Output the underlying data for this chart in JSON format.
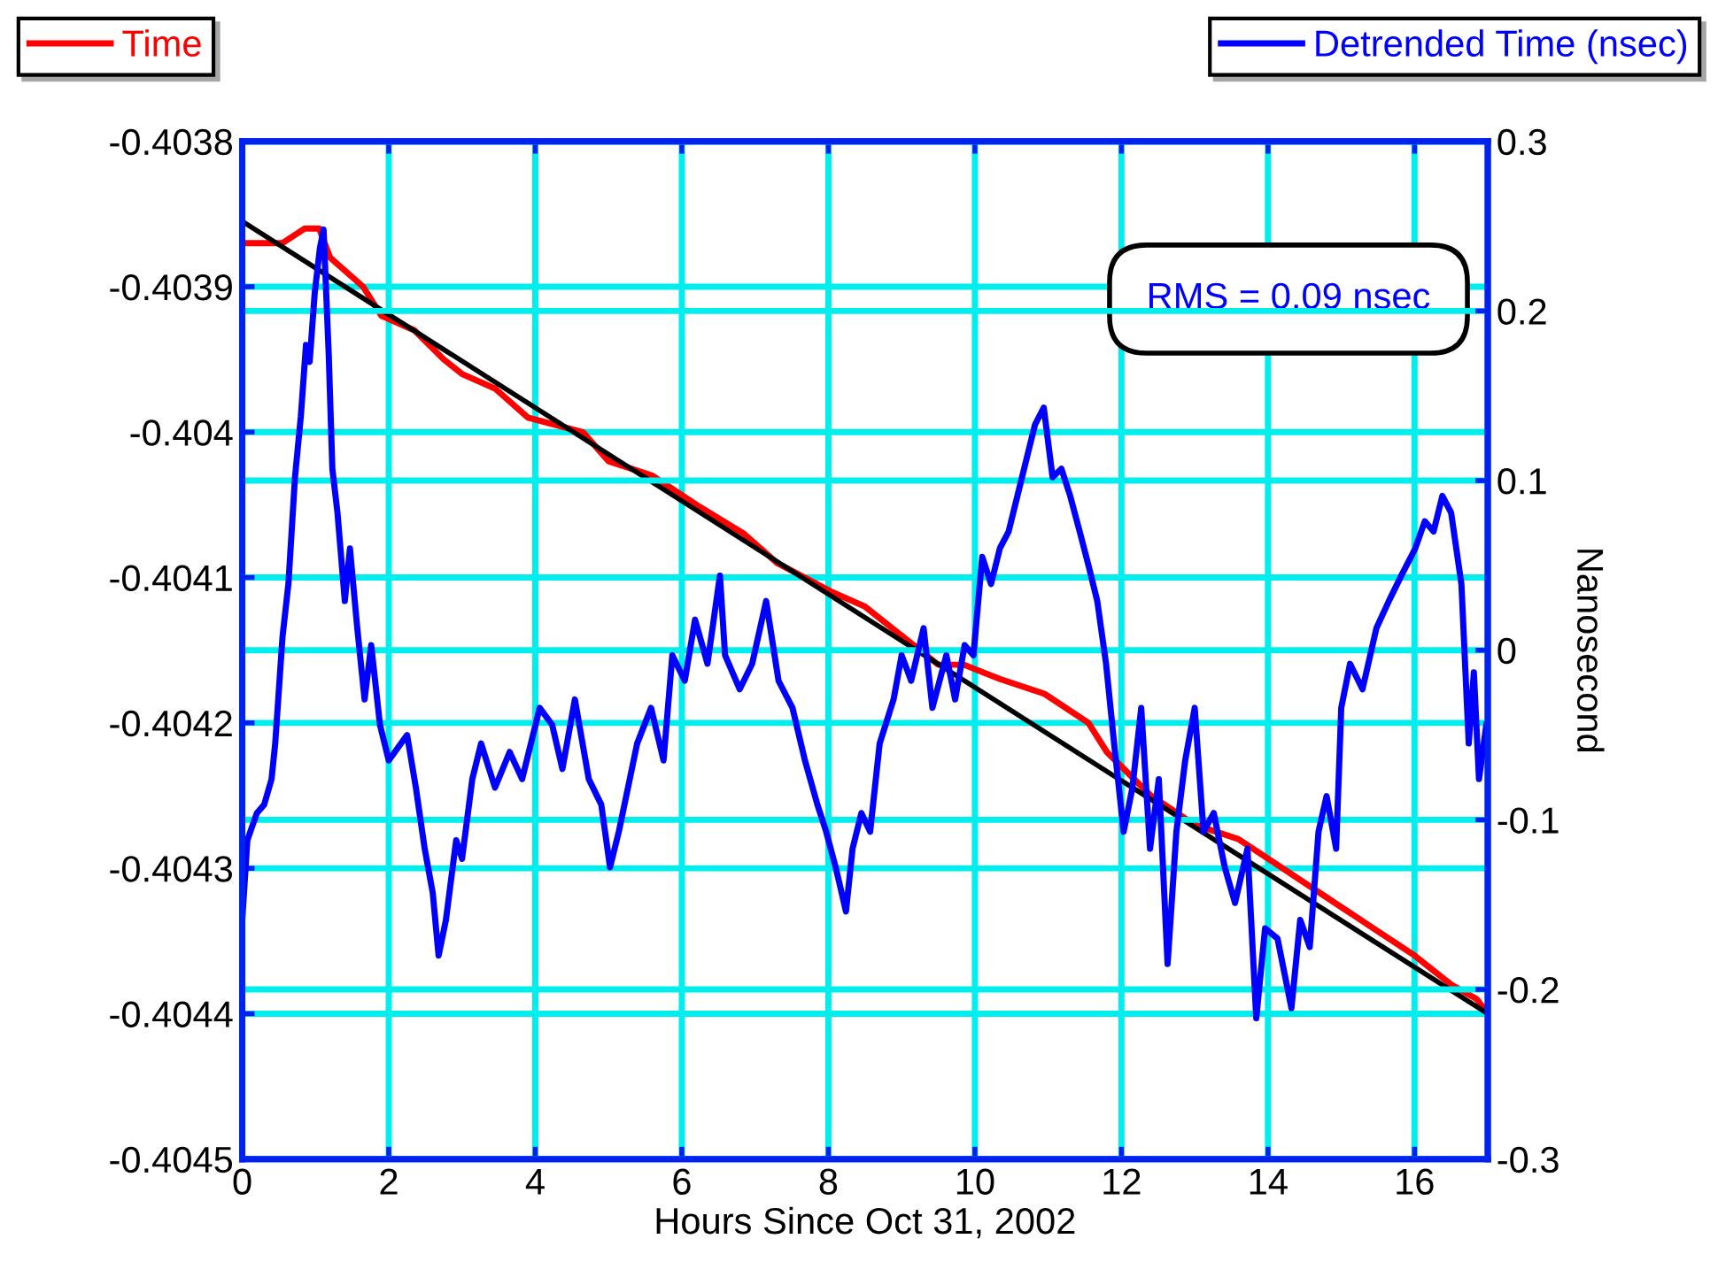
{
  "chart_data": {
    "type": "line",
    "xlabel": "Hours Since Oct 31, 2002",
    "y2label": "Nanosecond",
    "xlim": [
      0,
      17
    ],
    "xticks": [
      0,
      2,
      4,
      6,
      8,
      10,
      12,
      14,
      16
    ],
    "ylim": [
      -0.4045,
      -0.4038
    ],
    "yticks": [
      -0.4045,
      -0.4044,
      -0.4043,
      -0.4042,
      -0.4041,
      -0.404,
      -0.4039,
      -0.4038
    ],
    "y2lim": [
      -0.3,
      0.3
    ],
    "y2ticks": [
      -0.3,
      -0.2,
      -0.1,
      0,
      0.1,
      0.2,
      0.3
    ],
    "grid": true,
    "legend": "top",
    "annotations": [
      "RMS = 0.09 nsec"
    ],
    "series": [
      {
        "name": "Time",
        "color": "#ff0000",
        "x": [
          0,
          0.55,
          0.85,
          1.05,
          1.2,
          1.65,
          1.9,
          2.35,
          2.75,
          3.0,
          3.45,
          3.9,
          4.65,
          5.0,
          5.6,
          6.2,
          6.85,
          7.3,
          8.05,
          8.5,
          9.0,
          9.5,
          9.85,
          10.35,
          10.95,
          11.55,
          11.8,
          12.4,
          13.0,
          13.6,
          14.2,
          14.8,
          15.4,
          16.0,
          16.5,
          16.85,
          17.0
        ],
        "values": [
          -0.40387,
          -0.40387,
          -0.40386,
          -0.40386,
          -0.40388,
          -0.4039,
          -0.40392,
          -0.40393,
          -0.40395,
          -0.40396,
          -0.40397,
          -0.40399,
          -0.404,
          -0.40402,
          -0.40403,
          -0.40405,
          -0.40407,
          -0.40409,
          -0.40411,
          -0.40412,
          -0.40414,
          -0.40416,
          -0.40416,
          -0.40417,
          -0.40418,
          -0.4042,
          -0.40422,
          -0.40425,
          -0.40427,
          -0.40428,
          -0.4043,
          -0.40432,
          -0.40434,
          -0.40436,
          -0.40438,
          -0.40439,
          -0.4044
        ]
      },
      {
        "color": "#000000",
        "x": [
          0,
          17
        ],
        "values": [
          -0.403855,
          -0.4044
        ]
      },
      {
        "name": "Detrended Time (nsec)",
        "color": "#0000ff",
        "axis": "y2",
        "x": [
          0,
          0.07,
          0.2,
          0.3,
          0.4,
          0.45,
          0.55,
          0.63,
          0.72,
          0.8,
          0.87,
          0.92,
          0.99,
          1.06,
          1.11,
          1.18,
          1.23,
          1.3,
          1.4,
          1.47,
          1.57,
          1.67,
          1.76,
          1.88,
          2.0,
          2.25,
          2.37,
          2.49,
          2.6,
          2.68,
          2.78,
          2.92,
          3.0,
          3.14,
          3.26,
          3.45,
          3.65,
          3.82,
          4.06,
          4.23,
          4.37,
          4.54,
          4.73,
          4.9,
          5.02,
          5.14,
          5.39,
          5.58,
          5.75,
          5.87,
          6.04,
          6.18,
          6.35,
          6.52,
          6.59,
          6.79,
          6.96,
          7.15,
          7.32,
          7.51,
          7.68,
          7.85,
          7.97,
          8.1,
          8.24,
          8.33,
          8.45,
          8.57,
          8.7,
          8.89,
          9.0,
          9.13,
          9.3,
          9.42,
          9.61,
          9.73,
          9.86,
          9.98,
          10.1,
          10.22,
          10.34,
          10.46,
          10.58,
          10.7,
          10.82,
          10.94,
          11.06,
          11.18,
          11.3,
          11.43,
          11.55,
          11.67,
          11.79,
          11.9,
          12.03,
          12.15,
          12.27,
          12.39,
          12.51,
          12.63,
          12.75,
          12.87,
          13.0,
          13.12,
          13.26,
          13.41,
          13.55,
          13.72,
          13.84,
          13.96,
          14.13,
          14.32,
          14.44,
          14.57,
          14.69,
          14.8,
          14.93,
          15.0,
          15.12,
          15.29,
          15.48,
          15.65,
          15.82,
          16.01,
          16.14,
          16.26,
          16.38,
          16.5,
          16.64,
          16.74,
          16.81,
          16.88,
          16.98
        ],
        "values": [
          -0.159,
          -0.112,
          -0.096,
          -0.091,
          -0.076,
          -0.055,
          0.008,
          0.039,
          0.102,
          0.138,
          0.18,
          0.17,
          0.211,
          0.237,
          0.248,
          0.175,
          0.107,
          0.081,
          0.029,
          0.06,
          0.013,
          -0.029,
          0.003,
          -0.044,
          -0.065,
          -0.05,
          -0.081,
          -0.117,
          -0.143,
          -0.18,
          -0.159,
          -0.112,
          -0.123,
          -0.076,
          -0.055,
          -0.081,
          -0.06,
          -0.076,
          -0.034,
          -0.044,
          -0.07,
          -0.029,
          -0.076,
          -0.091,
          -0.128,
          -0.107,
          -0.055,
          -0.034,
          -0.065,
          -0.003,
          -0.018,
          0.018,
          -0.008,
          0.044,
          -0.003,
          -0.023,
          -0.008,
          0.029,
          -0.018,
          -0.034,
          -0.065,
          -0.091,
          -0.107,
          -0.128,
          -0.154,
          -0.117,
          -0.096,
          -0.107,
          -0.055,
          -0.029,
          -0.003,
          -0.018,
          0.013,
          -0.034,
          -0.003,
          -0.029,
          0.003,
          -0.003,
          0.055,
          0.039,
          0.06,
          0.07,
          0.091,
          0.112,
          0.133,
          0.143,
          0.102,
          0.107,
          0.091,
          0.07,
          0.05,
          0.029,
          -0.008,
          -0.055,
          -0.107,
          -0.081,
          -0.034,
          -0.117,
          -0.076,
          -0.185,
          -0.107,
          -0.065,
          -0.034,
          -0.107,
          -0.096,
          -0.128,
          -0.149,
          -0.117,
          -0.217,
          -0.164,
          -0.17,
          -0.211,
          -0.159,
          -0.175,
          -0.107,
          -0.086,
          -0.117,
          -0.034,
          -0.008,
          -0.023,
          0.013,
          0.029,
          0.044,
          0.06,
          0.076,
          0.07,
          0.091,
          0.081,
          0.039,
          -0.055,
          -0.013,
          -0.076,
          -0.044
        ]
      }
    ]
  }
}
